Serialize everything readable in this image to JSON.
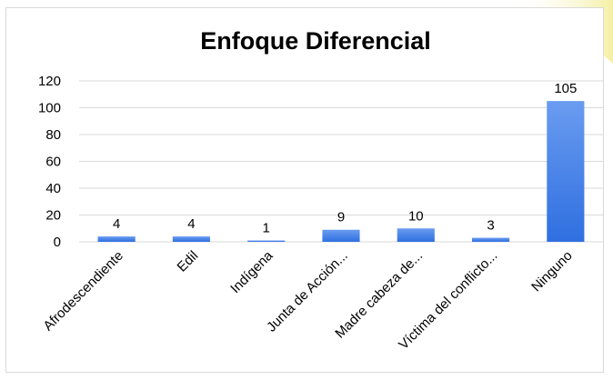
{
  "chart_data": {
    "type": "bar",
    "title": "Enfoque Diferencial",
    "xlabel": "",
    "ylabel": "",
    "categories": [
      "Afrodescendiente",
      "Edil",
      "Indígena",
      "Junta de Acción...",
      "Madre cabeza de...",
      "Víctima del conflicto...",
      "Ninguno"
    ],
    "values": [
      4,
      4,
      1,
      9,
      10,
      3,
      105
    ],
    "ylim": [
      0,
      120
    ],
    "yticks": [
      0,
      20,
      40,
      60,
      80,
      100,
      120
    ],
    "grid": true,
    "legend": "none",
    "colors": {
      "bar_top": "#6a9cf0",
      "bar_bottom": "#2f6fe0",
      "grid": "#d9d9d9",
      "frame": "#d9d9d9",
      "background_accent": "#f5f0a8"
    }
  }
}
